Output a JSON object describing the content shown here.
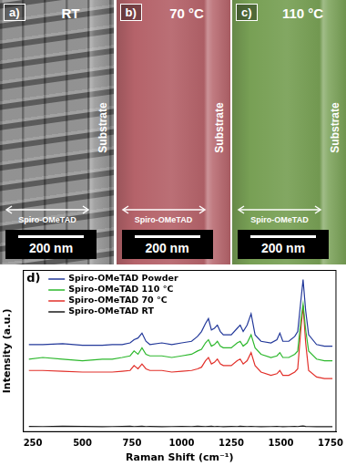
{
  "panels": [
    {
      "label": "a)",
      "title": "RT",
      "color": "#7f7f7f",
      "substrate": "Substrate",
      "layer": "Spiro-OMeTAD",
      "scale_bar": "200 nm"
    },
    {
      "label": "b)",
      "title": "70 °C",
      "color": "#b5636a",
      "substrate": "Substrate",
      "layer": "Spiro-OMeTAD",
      "scale_bar": "200 nm"
    },
    {
      "label": "c)",
      "title": "110 °C",
      "color": "#78a055",
      "substrate": "Substrate",
      "layer": "Spiro-OMeTAD",
      "scale_bar": "200 nm"
    }
  ],
  "chart_data": {
    "type": "line",
    "panel_label": "d)",
    "x_label": "Raman Shift (cm⁻¹)",
    "y_label": "Intensity (a.u.)",
    "xlim": [
      200,
      1780
    ],
    "xticks": [
      250,
      500,
      750,
      1000,
      1250,
      1500,
      1750
    ],
    "ylim": [
      0,
      100
    ],
    "tick_labels": "x",
    "grid": false,
    "legend": "upper left",
    "x": [
      230,
      300,
      400,
      500,
      600,
      650,
      700,
      740,
      760,
      780,
      800,
      820,
      840,
      900,
      950,
      1000,
      1050,
      1080,
      1100,
      1120,
      1135,
      1150,
      1165,
      1180,
      1195,
      1210,
      1250,
      1280,
      1295,
      1310,
      1330,
      1350,
      1370,
      1400,
      1450,
      1480,
      1495,
      1510,
      1540,
      1570,
      1585,
      1600,
      1612,
      1625,
      1640,
      1680,
      1720,
      1760
    ],
    "series": [
      {
        "name": "Spiro-OMeTAD Powder",
        "color": "#23399a",
        "values": [
          54,
          54,
          54.5,
          53.5,
          53.5,
          54,
          54,
          55,
          57,
          58,
          61,
          56,
          54,
          55,
          54,
          55,
          56,
          59,
          62,
          67,
          70,
          63,
          64,
          66,
          62,
          60,
          60,
          64,
          66,
          62,
          66,
          73,
          60,
          56,
          55,
          57,
          61,
          56,
          56,
          59,
          62,
          80,
          94,
          75,
          60,
          54,
          53,
          53
        ]
      },
      {
        "name": "Spiro-OMeTAD 110 °C",
        "color": "#2db82d",
        "values": [
          45,
          46,
          45,
          44,
          45,
          45,
          46,
          47,
          50,
          48,
          52,
          48,
          47,
          47,
          46,
          47,
          48,
          50,
          51,
          55,
          57,
          53,
          54,
          56,
          53,
          52,
          52,
          55,
          56,
          53,
          55,
          60,
          52,
          48,
          46,
          47,
          49,
          46,
          46,
          48,
          50,
          68,
          79,
          63,
          50,
          45,
          44,
          44
        ]
      },
      {
        "name": "Spiro-OMeTAD 70 °C",
        "color": "#e2302a",
        "values": [
          38,
          38,
          37.5,
          37,
          37,
          37,
          37.5,
          38,
          41,
          39,
          42,
          39,
          38,
          38,
          37,
          37.5,
          38,
          39,
          40,
          44,
          46,
          42,
          43,
          45,
          42,
          41,
          41,
          44,
          45,
          42,
          44,
          49,
          41,
          37,
          35,
          36,
          38,
          35,
          35,
          37,
          39,
          62,
          78,
          55,
          38,
          34,
          33,
          33
        ]
      },
      {
        "name": "Spiro-OMeTAD RT",
        "color": "#1a1a1a",
        "values": [
          3.5,
          3.4,
          3.6,
          3.5,
          3.3,
          3.4,
          3.5,
          3.6,
          3.4,
          3.5,
          3.6,
          3.4,
          3.5,
          3.3,
          3.4,
          3.5,
          3.4,
          3.6,
          3.5,
          3.4,
          3.5,
          3.6,
          3.4,
          3.5,
          3.4,
          3.3,
          3.5,
          3.4,
          3.6,
          3.5,
          3.4,
          3.5,
          3.4,
          3.3,
          3.4,
          3.5,
          3.4,
          3.3,
          3.4,
          3.5,
          3.4,
          3.6,
          3.7,
          3.5,
          3.4,
          3.3,
          3.4,
          3.3
        ]
      }
    ]
  }
}
